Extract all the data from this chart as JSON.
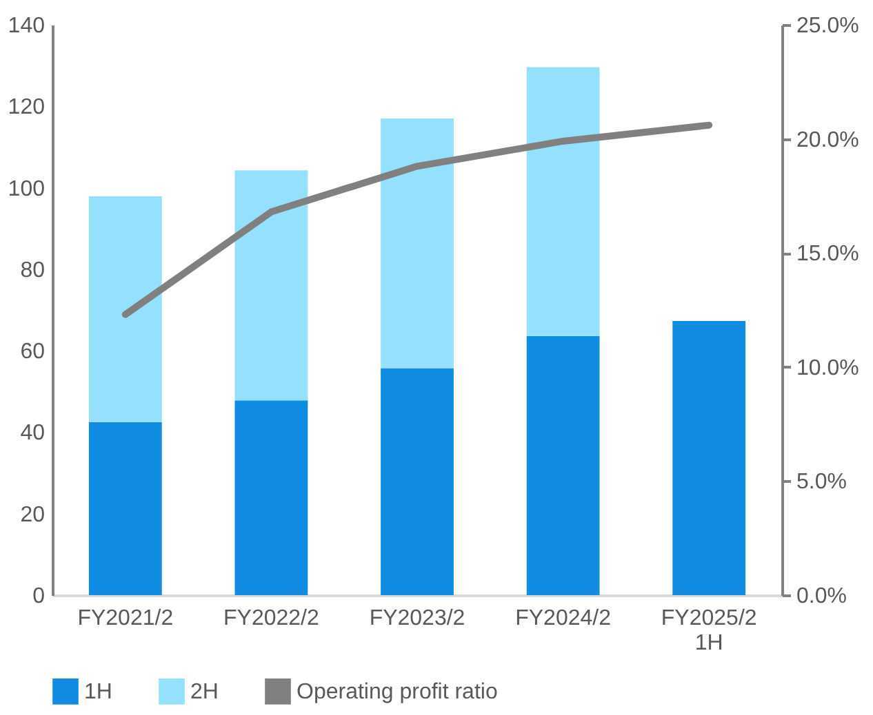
{
  "chart_data": {
    "type": "bar",
    "stacked": true,
    "categories": [
      "FY2021/2",
      "FY2022/2",
      "FY2023/2",
      "FY2024/2",
      "FY2025/2 1H"
    ],
    "series": [
      {
        "name": "1H",
        "color": "#118ce3",
        "values": [
          42.5,
          47.8,
          55.7,
          63.6,
          67.3
        ]
      },
      {
        "name": "2H",
        "color": "#95e1fd",
        "values": [
          55.4,
          56.5,
          61.3,
          66.0,
          null
        ]
      },
      {
        "name": "Operating profit ratio",
        "type": "line",
        "axis": "y2",
        "color": "#808080",
        "values": [
          12.3,
          16.8,
          18.8,
          19.9,
          20.6
        ]
      }
    ],
    "ylim": [
      0,
      140
    ],
    "yticks": [
      0,
      20,
      40,
      60,
      80,
      100,
      120,
      140
    ],
    "y2lim": [
      0,
      25
    ],
    "y2ticks": [
      {
        "value": 0,
        "label": "0.0%"
      },
      {
        "value": 5,
        "label": "5.0%"
      },
      {
        "value": 10,
        "label": "10.0%"
      },
      {
        "value": 15,
        "label": "15.0%"
      },
      {
        "value": 20,
        "label": "20.0%"
      },
      {
        "value": 25,
        "label": "25.0%"
      }
    ],
    "grid": false,
    "legend": "bottom"
  }
}
